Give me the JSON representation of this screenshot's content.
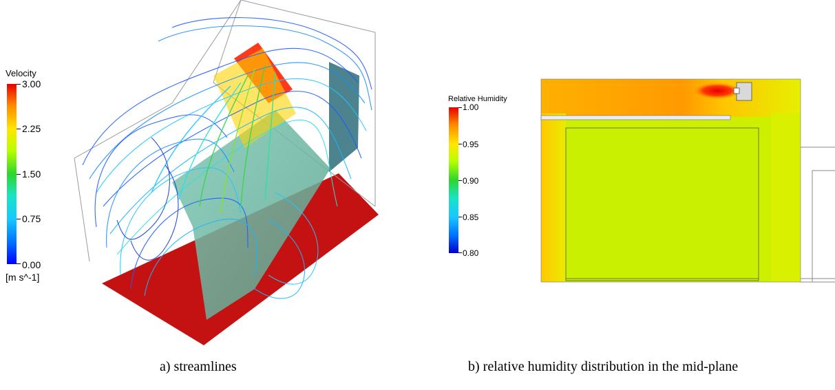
{
  "panel_a": {
    "legend": {
      "title": "Velocity",
      "unit": "[m s^-1]",
      "ticks": [
        "3.00",
        "2.25",
        "1.50",
        "0.75",
        "0.00"
      ],
      "range": [
        0,
        3
      ]
    },
    "caption": "a) streamlines"
  },
  "panel_b": {
    "legend": {
      "title": "Relative Humidity",
      "ticks": [
        "1.00",
        "0.95",
        "0.90",
        "0.85",
        "0.80"
      ],
      "range": [
        0.8,
        1.0
      ]
    },
    "caption": "b) relative humidity distribution in the mid-plane"
  },
  "colors": {
    "floor_red": "#c41212",
    "humid_yellow_green": "#c8f000",
    "humid_orange": "#ffb300",
    "humid_red": "#e60000"
  }
}
